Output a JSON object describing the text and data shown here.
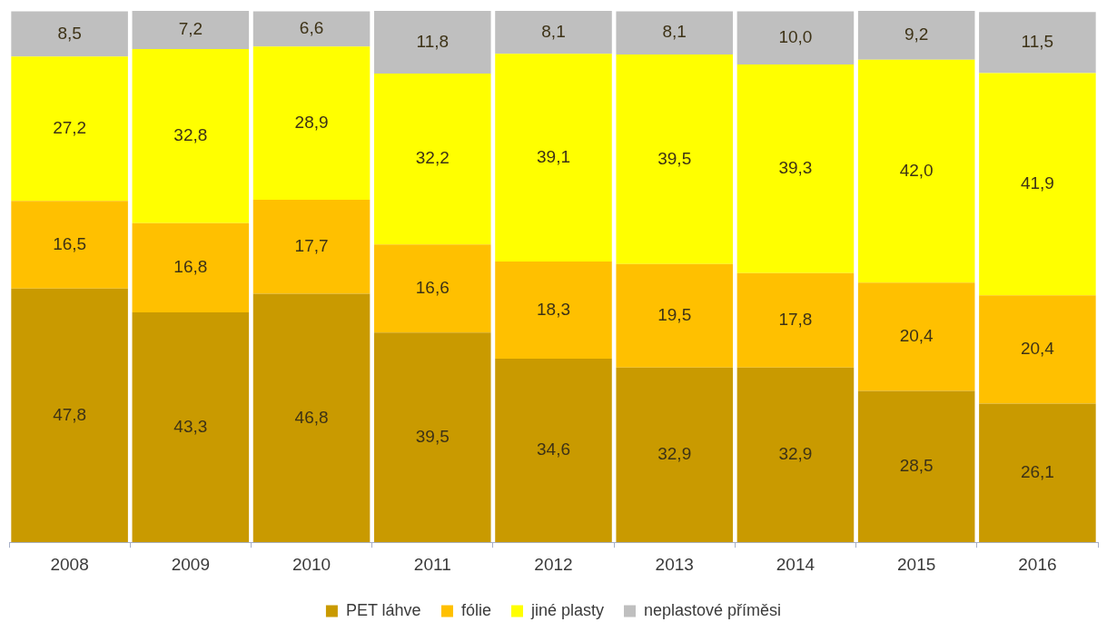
{
  "chart_data": {
    "type": "bar",
    "stacked": true,
    "legend": "bottom",
    "tick_labels": "x",
    "categories": [
      "2008",
      "2009",
      "2010",
      "2011",
      "2012",
      "2013",
      "2014",
      "2015",
      "2016"
    ],
    "series": [
      {
        "name": "PET láhve",
        "color": "#c99a00",
        "values": [
          47.8,
          43.3,
          46.8,
          39.5,
          34.6,
          32.9,
          32.9,
          28.5,
          26.1
        ],
        "value_labels": [
          "47,8",
          "43,3",
          "46,8",
          "39,5",
          "34,6",
          "32,9",
          "32,9",
          "28,5",
          "26,1"
        ]
      },
      {
        "name": "fólie",
        "color": "#ffc000",
        "values": [
          16.5,
          16.8,
          17.7,
          16.6,
          18.3,
          19.5,
          17.8,
          20.4,
          20.4
        ],
        "value_labels": [
          "16,5",
          "16,8",
          "17,7",
          "16,6",
          "18,3",
          "19,5",
          "17,8",
          "20,4",
          "20,4"
        ]
      },
      {
        "name": "jiné plasty",
        "color": "#ffff00",
        "values": [
          27.2,
          32.8,
          28.9,
          32.2,
          39.1,
          39.5,
          39.3,
          42.0,
          41.9
        ],
        "value_labels": [
          "27,2",
          "32,8",
          "28,9",
          "32,2",
          "39,1",
          "39,5",
          "39,3",
          "42,0",
          "41,9"
        ]
      },
      {
        "name": "neplastové příměsi",
        "color": "#bfbfbf",
        "values": [
          8.5,
          7.2,
          6.6,
          11.8,
          8.1,
          8.1,
          10.0,
          9.2,
          11.5
        ],
        "value_labels": [
          "8,5",
          "7,2",
          "6,6",
          "11,8",
          "8,1",
          "8,1",
          "10,0",
          "9,2",
          "11,5"
        ]
      }
    ]
  }
}
